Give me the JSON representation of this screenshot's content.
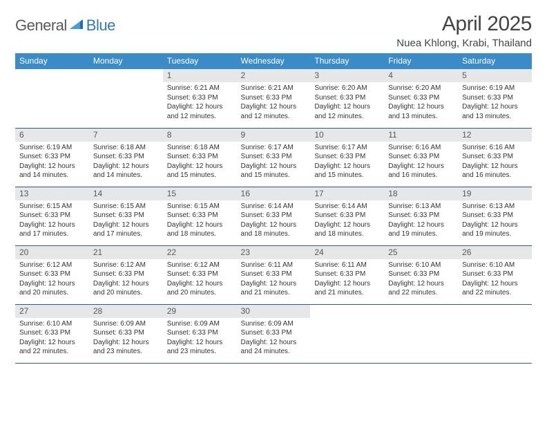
{
  "logo": {
    "word1": "General",
    "word2": "Blue"
  },
  "title": "April 2025",
  "location": "Nuea Khlong, Krabi, Thailand",
  "colors": {
    "header_bg": "#3b8bc8",
    "header_text": "#ffffff",
    "daynum_bg": "#e6e7e8",
    "daynum_text": "#55595c",
    "border": "#2c5a85",
    "logo_gray": "#5a5a5a",
    "logo_blue": "#2f7abf"
  },
  "weekdays": [
    "Sunday",
    "Monday",
    "Tuesday",
    "Wednesday",
    "Thursday",
    "Friday",
    "Saturday"
  ],
  "weeks": [
    [
      {
        "day": "",
        "sunrise": "",
        "sunset": "",
        "daylight": ""
      },
      {
        "day": "",
        "sunrise": "",
        "sunset": "",
        "daylight": ""
      },
      {
        "day": "1",
        "sunrise": "Sunrise: 6:21 AM",
        "sunset": "Sunset: 6:33 PM",
        "daylight": "Daylight: 12 hours and 12 minutes."
      },
      {
        "day": "2",
        "sunrise": "Sunrise: 6:21 AM",
        "sunset": "Sunset: 6:33 PM",
        "daylight": "Daylight: 12 hours and 12 minutes."
      },
      {
        "day": "3",
        "sunrise": "Sunrise: 6:20 AM",
        "sunset": "Sunset: 6:33 PM",
        "daylight": "Daylight: 12 hours and 12 minutes."
      },
      {
        "day": "4",
        "sunrise": "Sunrise: 6:20 AM",
        "sunset": "Sunset: 6:33 PM",
        "daylight": "Daylight: 12 hours and 13 minutes."
      },
      {
        "day": "5",
        "sunrise": "Sunrise: 6:19 AM",
        "sunset": "Sunset: 6:33 PM",
        "daylight": "Daylight: 12 hours and 13 minutes."
      }
    ],
    [
      {
        "day": "6",
        "sunrise": "Sunrise: 6:19 AM",
        "sunset": "Sunset: 6:33 PM",
        "daylight": "Daylight: 12 hours and 14 minutes."
      },
      {
        "day": "7",
        "sunrise": "Sunrise: 6:18 AM",
        "sunset": "Sunset: 6:33 PM",
        "daylight": "Daylight: 12 hours and 14 minutes."
      },
      {
        "day": "8",
        "sunrise": "Sunrise: 6:18 AM",
        "sunset": "Sunset: 6:33 PM",
        "daylight": "Daylight: 12 hours and 15 minutes."
      },
      {
        "day": "9",
        "sunrise": "Sunrise: 6:17 AM",
        "sunset": "Sunset: 6:33 PM",
        "daylight": "Daylight: 12 hours and 15 minutes."
      },
      {
        "day": "10",
        "sunrise": "Sunrise: 6:17 AM",
        "sunset": "Sunset: 6:33 PM",
        "daylight": "Daylight: 12 hours and 15 minutes."
      },
      {
        "day": "11",
        "sunrise": "Sunrise: 6:16 AM",
        "sunset": "Sunset: 6:33 PM",
        "daylight": "Daylight: 12 hours and 16 minutes."
      },
      {
        "day": "12",
        "sunrise": "Sunrise: 6:16 AM",
        "sunset": "Sunset: 6:33 PM",
        "daylight": "Daylight: 12 hours and 16 minutes."
      }
    ],
    [
      {
        "day": "13",
        "sunrise": "Sunrise: 6:15 AM",
        "sunset": "Sunset: 6:33 PM",
        "daylight": "Daylight: 12 hours and 17 minutes."
      },
      {
        "day": "14",
        "sunrise": "Sunrise: 6:15 AM",
        "sunset": "Sunset: 6:33 PM",
        "daylight": "Daylight: 12 hours and 17 minutes."
      },
      {
        "day": "15",
        "sunrise": "Sunrise: 6:15 AM",
        "sunset": "Sunset: 6:33 PM",
        "daylight": "Daylight: 12 hours and 18 minutes."
      },
      {
        "day": "16",
        "sunrise": "Sunrise: 6:14 AM",
        "sunset": "Sunset: 6:33 PM",
        "daylight": "Daylight: 12 hours and 18 minutes."
      },
      {
        "day": "17",
        "sunrise": "Sunrise: 6:14 AM",
        "sunset": "Sunset: 6:33 PM",
        "daylight": "Daylight: 12 hours and 18 minutes."
      },
      {
        "day": "18",
        "sunrise": "Sunrise: 6:13 AM",
        "sunset": "Sunset: 6:33 PM",
        "daylight": "Daylight: 12 hours and 19 minutes."
      },
      {
        "day": "19",
        "sunrise": "Sunrise: 6:13 AM",
        "sunset": "Sunset: 6:33 PM",
        "daylight": "Daylight: 12 hours and 19 minutes."
      }
    ],
    [
      {
        "day": "20",
        "sunrise": "Sunrise: 6:12 AM",
        "sunset": "Sunset: 6:33 PM",
        "daylight": "Daylight: 12 hours and 20 minutes."
      },
      {
        "day": "21",
        "sunrise": "Sunrise: 6:12 AM",
        "sunset": "Sunset: 6:33 PM",
        "daylight": "Daylight: 12 hours and 20 minutes."
      },
      {
        "day": "22",
        "sunrise": "Sunrise: 6:12 AM",
        "sunset": "Sunset: 6:33 PM",
        "daylight": "Daylight: 12 hours and 20 minutes."
      },
      {
        "day": "23",
        "sunrise": "Sunrise: 6:11 AM",
        "sunset": "Sunset: 6:33 PM",
        "daylight": "Daylight: 12 hours and 21 minutes."
      },
      {
        "day": "24",
        "sunrise": "Sunrise: 6:11 AM",
        "sunset": "Sunset: 6:33 PM",
        "daylight": "Daylight: 12 hours and 21 minutes."
      },
      {
        "day": "25",
        "sunrise": "Sunrise: 6:10 AM",
        "sunset": "Sunset: 6:33 PM",
        "daylight": "Daylight: 12 hours and 22 minutes."
      },
      {
        "day": "26",
        "sunrise": "Sunrise: 6:10 AM",
        "sunset": "Sunset: 6:33 PM",
        "daylight": "Daylight: 12 hours and 22 minutes."
      }
    ],
    [
      {
        "day": "27",
        "sunrise": "Sunrise: 6:10 AM",
        "sunset": "Sunset: 6:33 PM",
        "daylight": "Daylight: 12 hours and 22 minutes."
      },
      {
        "day": "28",
        "sunrise": "Sunrise: 6:09 AM",
        "sunset": "Sunset: 6:33 PM",
        "daylight": "Daylight: 12 hours and 23 minutes."
      },
      {
        "day": "29",
        "sunrise": "Sunrise: 6:09 AM",
        "sunset": "Sunset: 6:33 PM",
        "daylight": "Daylight: 12 hours and 23 minutes."
      },
      {
        "day": "30",
        "sunrise": "Sunrise: 6:09 AM",
        "sunset": "Sunset: 6:33 PM",
        "daylight": "Daylight: 12 hours and 24 minutes."
      },
      {
        "day": "",
        "sunrise": "",
        "sunset": "",
        "daylight": ""
      },
      {
        "day": "",
        "sunrise": "",
        "sunset": "",
        "daylight": ""
      },
      {
        "day": "",
        "sunrise": "",
        "sunset": "",
        "daylight": ""
      }
    ]
  ]
}
